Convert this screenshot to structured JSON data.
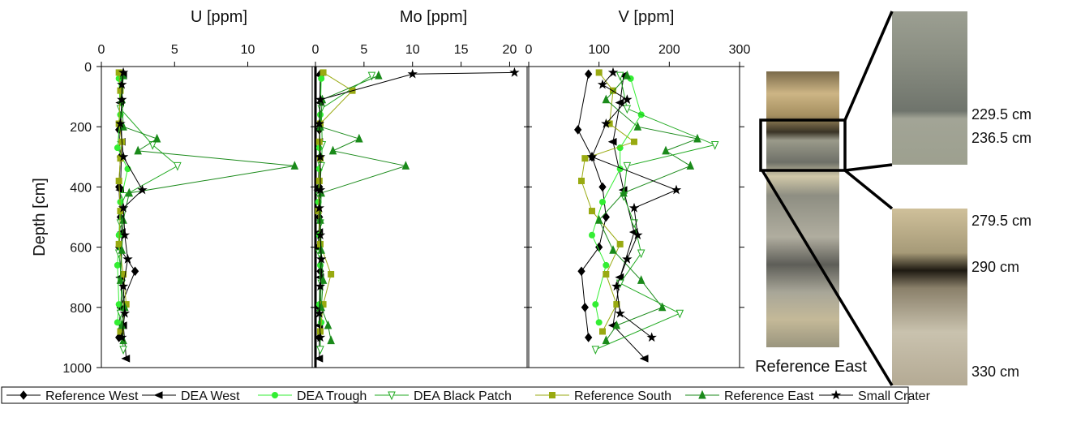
{
  "chart_data": [
    {
      "type": "line",
      "title": "U [ppm]",
      "ylabel": "Depth [cm]",
      "xlim": [
        0,
        14.4
      ],
      "xticks": [
        0,
        5,
        10
      ],
      "ylim": [
        0,
        1000
      ],
      "yticks": [
        0,
        200,
        400,
        600,
        800,
        1000
      ],
      "y_inverted": true,
      "series": [
        {
          "name": "Reference West",
          "color": "#000000",
          "marker": "diamond",
          "depth": [
            25,
            210,
            300,
            400,
            500,
            600,
            680,
            800,
            900
          ],
          "values": [
            1.3,
            1.2,
            1.3,
            1.2,
            1.3,
            1.2,
            2.3,
            1.3,
            1.2
          ]
        },
        {
          "name": "DEA West",
          "color": "#000000",
          "marker": "triangle-left",
          "depth": [
            30,
            120,
            250,
            410,
            550,
            700,
            860,
            970
          ],
          "values": [
            1.5,
            1.3,
            1.4,
            1.3,
            1.4,
            1.3,
            1.5,
            1.7
          ]
        },
        {
          "name": "DEA Trough",
          "color": "#33ee33",
          "marker": "circle",
          "depth": [
            40,
            160,
            270,
            340,
            450,
            560,
            660,
            790,
            850
          ],
          "values": [
            1.2,
            1.3,
            1.1,
            1.8,
            1.3,
            1.2,
            1.1,
            1.2,
            1.1
          ]
        },
        {
          "name": "DEA Black Patch",
          "color": "#22aa22",
          "marker": "triangle-down-open",
          "depth": [
            30,
            140,
            260,
            330,
            430,
            520,
            620,
            720,
            820,
            940
          ],
          "values": [
            1.4,
            1.3,
            3.5,
            5.2,
            1.5,
            1.3,
            1.2,
            1.4,
            1.3,
            1.5
          ]
        },
        {
          "name": "Reference South",
          "color": "#99aa11",
          "marker": "square",
          "depth": [
            20,
            80,
            190,
            250,
            305,
            380,
            480,
            590,
            690,
            790,
            880
          ],
          "values": [
            1.2,
            1.3,
            1.2,
            1.4,
            1.3,
            1.2,
            1.3,
            1.2,
            1.5,
            1.7,
            1.3
          ]
        },
        {
          "name": "Reference East",
          "color": "#1a8a1a",
          "marker": "triangle-up",
          "depth": [
            30,
            110,
            200,
            240,
            280,
            330,
            420,
            510,
            610,
            710,
            800,
            860,
            910
          ],
          "values": [
            1.5,
            1.4,
            1.5,
            3.8,
            2.5,
            13.2,
            1.9,
            1.5,
            1.4,
            1.3,
            1.6,
            1.4,
            1.5
          ]
        },
        {
          "name": "Small Crater",
          "color": "#000000",
          "marker": "star",
          "depth": [
            20,
            60,
            110,
            190,
            300,
            410,
            470,
            560,
            640,
            730,
            820,
            900
          ],
          "values": [
            1.5,
            1.4,
            1.4,
            1.3,
            1.5,
            2.8,
            1.5,
            1.6,
            1.8,
            1.5,
            1.6,
            1.4
          ]
        }
      ]
    },
    {
      "type": "line",
      "title": "Mo [ppm]",
      "xlim": [
        0,
        21.8
      ],
      "xticks": [
        0,
        5,
        10,
        15,
        20
      ],
      "ylim": [
        0,
        1000
      ],
      "yticks": [
        0,
        200,
        400,
        600,
        800,
        1000
      ],
      "y_inverted": true,
      "series": [
        {
          "depth": [
            25,
            210,
            300,
            400,
            500,
            600,
            680,
            800,
            900
          ],
          "values": [
            0.5,
            0.4,
            0.5,
            0.4,
            0.4,
            0.3,
            0.5,
            0.4,
            0.4
          ]
        },
        {
          "depth": [
            30,
            120,
            250,
            410,
            550,
            700,
            860,
            970
          ],
          "values": [
            0.5,
            0.5,
            0.4,
            0.3,
            0.4,
            0.5,
            0.4,
            0.4
          ]
        },
        {
          "depth": [
            40,
            160,
            270,
            340,
            450,
            560,
            660,
            790,
            850
          ],
          "values": [
            0.6,
            0.5,
            0.4,
            0.4,
            0.3,
            0.4,
            0.5,
            0.4,
            0.6
          ]
        },
        {
          "depth": [
            30,
            140,
            260,
            330,
            430,
            520,
            620,
            720,
            820,
            940
          ],
          "values": [
            5.8,
            0.6,
            0.7,
            0.6,
            0.4,
            0.5,
            0.4,
            0.6,
            0.5,
            0.5
          ]
        },
        {
          "depth": [
            20,
            80,
            190,
            250,
            305,
            380,
            480,
            590,
            690,
            790,
            880
          ],
          "values": [
            0.8,
            3.8,
            0.5,
            0.4,
            0.5,
            0.4,
            0.3,
            0.5,
            1.6,
            0.8,
            0.5
          ]
        },
        {
          "depth": [
            30,
            110,
            200,
            240,
            280,
            330,
            420,
            510,
            610,
            710,
            800,
            860,
            910
          ],
          "values": [
            6.5,
            0.7,
            0.5,
            4.5,
            1.8,
            9.3,
            0.6,
            0.5,
            0.6,
            0.8,
            0.6,
            1.3,
            1.6
          ]
        },
        {
          "depth": [
            20,
            25,
            110,
            190,
            300,
            410,
            470,
            560,
            640,
            730,
            820,
            900
          ],
          "values": [
            20.5,
            10,
            0.5,
            0.4,
            0.5,
            0.5,
            0.4,
            0.5,
            0.6,
            0.5,
            0.4,
            0.5
          ]
        }
      ]
    },
    {
      "type": "line",
      "title": "V [ppm]",
      "xlim": [
        0,
        300
      ],
      "xticks": [
        0,
        100,
        200,
        300
      ],
      "ylim": [
        0,
        1000
      ],
      "yticks": [
        0,
        200,
        400,
        600,
        800,
        1000
      ],
      "y_inverted": true,
      "series": [
        {
          "depth": [
            25,
            210,
            300,
            400,
            500,
            600,
            680,
            800,
            900
          ],
          "values": [
            85,
            70,
            90,
            105,
            110,
            100,
            75,
            80,
            85
          ]
        },
        {
          "depth": [
            30,
            120,
            250,
            410,
            550,
            700,
            860,
            970
          ],
          "values": [
            135,
            130,
            120,
            135,
            150,
            130,
            120,
            165
          ]
        },
        {
          "depth": [
            40,
            160,
            270,
            340,
            450,
            560,
            660,
            790,
            850
          ],
          "values": [
            145,
            160,
            130,
            130,
            105,
            90,
            110,
            95,
            100
          ]
        },
        {
          "depth": [
            30,
            140,
            260,
            330,
            430,
            520,
            620,
            720,
            820,
            940
          ],
          "values": [
            130,
            140,
            265,
            140,
            135,
            150,
            160,
            130,
            215,
            95
          ]
        },
        {
          "depth": [
            20,
            80,
            190,
            250,
            305,
            380,
            480,
            590,
            690,
            790,
            880
          ],
          "values": [
            100,
            120,
            115,
            150,
            80,
            75,
            90,
            130,
            110,
            125,
            105
          ]
        },
        {
          "depth": [
            30,
            110,
            200,
            240,
            280,
            330,
            420,
            510,
            610,
            710,
            800,
            860,
            910
          ],
          "values": [
            140,
            110,
            155,
            240,
            195,
            230,
            135,
            100,
            120,
            160,
            190,
            125,
            110
          ]
        },
        {
          "depth": [
            20,
            60,
            110,
            190,
            300,
            410,
            470,
            560,
            640,
            730,
            820,
            900
          ],
          "values": [
            120,
            105,
            140,
            110,
            90,
            210,
            150,
            155,
            140,
            125,
            130,
            175
          ]
        }
      ]
    }
  ],
  "photos": {
    "core_label": "Reference East",
    "upper_labels": [
      "229.5 cm",
      "236.5 cm"
    ],
    "lower_labels": [
      "279.5 cm",
      "290 cm",
      "330 cm"
    ]
  }
}
